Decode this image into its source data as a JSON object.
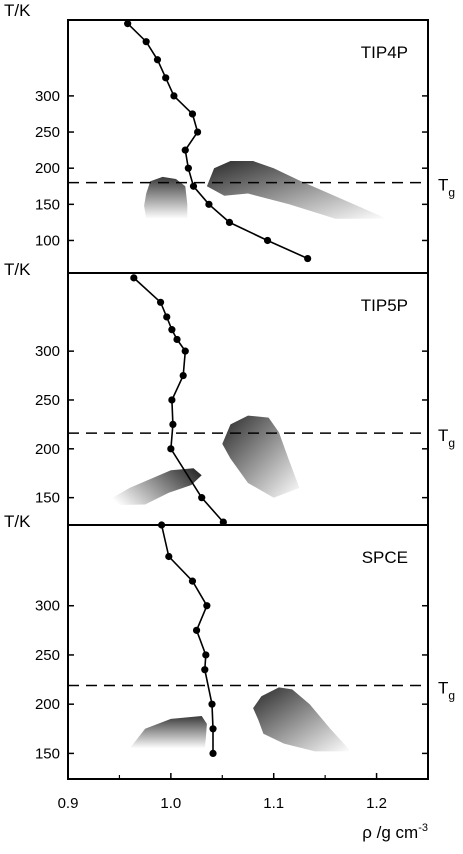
{
  "chart_data": [
    {
      "type": "line",
      "model_label": "TIP4P",
      "ylabel": "T/K",
      "ylim": [
        55,
        405
      ],
      "y_ticks": [
        100,
        150,
        200,
        250,
        300
      ],
      "tg_label": "Tg",
      "tg_value": 180,
      "series": [
        {
          "x": [
            0.958,
            0.976,
            0.987,
            0.995,
            1.003,
            1.021,
            1.026,
            1.014,
            1.017,
            1.022,
            1.037,
            1.057,
            1.094,
            1.133
          ],
          "y": [
            400,
            375,
            350,
            325,
            300,
            275,
            250,
            225,
            200,
            175,
            150,
            125,
            100,
            75
          ]
        }
      ],
      "regions": [
        {
          "outline": [
            [
              0.976,
              165
            ],
            [
              0.98,
              182
            ],
            [
              0.992,
              188
            ],
            [
              1.005,
              185
            ],
            [
              1.014,
              175
            ],
            [
              1.016,
              150
            ],
            [
              1.016,
              130
            ],
            [
              0.976,
              130
            ],
            [
              0.974,
              148
            ]
          ]
        },
        {
          "outline": [
            [
              1.035,
              175
            ],
            [
              1.042,
              200
            ],
            [
              1.058,
              210
            ],
            [
              1.08,
              210
            ],
            [
              1.1,
              200
            ],
            [
              1.125,
              183
            ],
            [
              1.165,
              158
            ],
            [
              1.21,
              130
            ],
            [
              1.16,
              130
            ],
            [
              1.115,
              150
            ],
            [
              1.075,
              165
            ],
            [
              1.052,
              162
            ]
          ]
        }
      ]
    },
    {
      "type": "line",
      "model_label": "TIP5P",
      "ylabel": "T/K",
      "ylim": [
        122,
        380
      ],
      "y_ticks": [
        150,
        200,
        250,
        300
      ],
      "tg_label": "Tg",
      "tg_value": 216,
      "series": [
        {
          "x": [
            0.964,
            0.99,
            0.996,
            1.001,
            1.006,
            1.014,
            1.012,
            1.001,
            1.002,
            1.0,
            1.03,
            1.051
          ],
          "y": [
            375,
            350,
            335,
            322,
            312,
            300,
            275,
            250,
            225,
            200,
            150,
            125
          ]
        }
      ],
      "regions": [
        {
          "outline": [
            [
              0.927,
              140
            ],
            [
              0.96,
              160
            ],
            [
              1.0,
              178
            ],
            [
              1.022,
              180
            ],
            [
              1.03,
              173
            ],
            [
              1.02,
              163
            ],
            [
              0.998,
              155
            ],
            [
              0.975,
              143
            ],
            [
              0.93,
              142
            ]
          ]
        },
        {
          "outline": [
            [
              1.05,
              205
            ],
            [
              1.058,
              225
            ],
            [
              1.075,
              234
            ],
            [
              1.095,
              232
            ],
            [
              1.105,
              217
            ],
            [
              1.115,
              188
            ],
            [
              1.125,
              160
            ],
            [
              1.1,
              150
            ],
            [
              1.075,
              165
            ],
            [
              1.058,
              190
            ]
          ]
        }
      ]
    },
    {
      "type": "line",
      "model_label": "SPCE",
      "ylabel": "T/K",
      "ylim": [
        124,
        382
      ],
      "y_ticks": [
        150,
        200,
        250,
        300
      ],
      "tg_label": "Tg",
      "tg_value": 219,
      "series": [
        {
          "x": [
            0.991,
            0.998,
            1.021,
            1.035,
            1.025,
            1.034,
            1.033,
            1.04,
            1.041,
            1.041
          ],
          "y": [
            382,
            350,
            325,
            300,
            275,
            250,
            235,
            200,
            175,
            150
          ]
        }
      ],
      "regions": [
        {
          "outline": [
            [
              0.96,
              155
            ],
            [
              0.975,
              175
            ],
            [
              1.0,
              185
            ],
            [
              1.03,
              188
            ],
            [
              1.035,
              180
            ],
            [
              1.034,
              165
            ],
            [
              1.033,
              155
            ],
            [
              0.96,
              155
            ]
          ]
        },
        {
          "outline": [
            [
              1.08,
              196
            ],
            [
              1.088,
              208
            ],
            [
              1.105,
              217
            ],
            [
              1.118,
              215
            ],
            [
              1.135,
              200
            ],
            [
              1.155,
              175
            ],
            [
              1.175,
              152
            ],
            [
              1.14,
              152
            ],
            [
              1.11,
              160
            ],
            [
              1.09,
              170
            ],
            [
              1.085,
              184
            ]
          ]
        }
      ]
    }
  ],
  "x_axis": {
    "xlim": [
      0.9,
      1.25
    ],
    "tick_values": [
      0.9,
      1.0,
      1.1,
      1.2
    ],
    "tick_labels": [
      "0.9",
      "1.0",
      "1.1",
      "1.2"
    ],
    "label": "ρ /g cm",
    "label_exp": "-3"
  }
}
